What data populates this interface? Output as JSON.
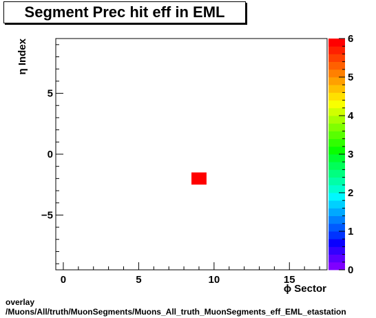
{
  "title": "Segment Prec hit eff in EML",
  "footer": {
    "line1": "overlay",
    "line2": "/Muons/All/truth/MuonSegments/Muons_All_truth_MuonSegments_eff_EML_etastation"
  },
  "chart_data": {
    "type": "heatmap",
    "title": "Segment Prec hit eff in EML",
    "xlabel": "ϕ Sector",
    "ylabel": "η Index",
    "xlim": [
      -0.5,
      17.5
    ],
    "ylim": [
      -9.5,
      9.5
    ],
    "x_ticks": [
      0,
      5,
      10,
      15
    ],
    "y_ticks": [
      -5,
      0,
      5
    ],
    "x_tick_labels": [
      "0",
      "5",
      "10",
      "15"
    ],
    "y_tick_labels": [
      "−5",
      "0",
      "5"
    ],
    "z_range": [
      0,
      6
    ],
    "z_ticks": [
      0,
      1,
      2,
      3,
      4,
      5,
      6
    ],
    "z_tick_labels": [
      "0",
      "1",
      "2",
      "3",
      "4",
      "5",
      "6"
    ],
    "cells": [
      {
        "x": 9,
        "y": -2,
        "z": 6
      }
    ],
    "palette": [
      "#7f00ff",
      "#5a00ff",
      "#3300ff",
      "#0a00ff",
      "#0033ff",
      "#005aff",
      "#0080ff",
      "#00a8ff",
      "#00d0ff",
      "#00f8ff",
      "#00ffd0",
      "#00ffa8",
      "#00ff80",
      "#00ff58",
      "#00ff30",
      "#08ff00",
      "#30ff00",
      "#58ff00",
      "#80ff00",
      "#a8ff00",
      "#d0ff00",
      "#f8ff00",
      "#ffe000",
      "#ffc000",
      "#ffa000",
      "#ff8000",
      "#ff6000",
      "#ff4000",
      "#ff2000",
      "#ff0000"
    ],
    "grid": false,
    "colorbar": "right"
  }
}
